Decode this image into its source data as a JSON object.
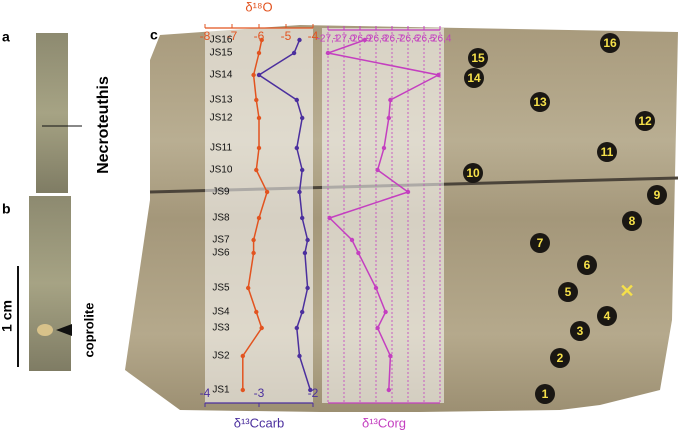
{
  "panels": [
    "a",
    "b",
    "c"
  ],
  "annotations": {
    "taxon": "Necroteuthis",
    "coprolite": "coprolite",
    "scale": "1 cm"
  },
  "burrow_labels": [
    "1",
    "2",
    "3",
    "4",
    "5",
    "6",
    "7",
    "8",
    "9",
    "10",
    "11",
    "12",
    "13",
    "14",
    "15",
    "16"
  ],
  "chart_data": [
    {
      "type": "line",
      "orientation": "vertical",
      "categories": [
        "JS16",
        "JS15",
        "JS14",
        "JS13",
        "JS12",
        "JS11",
        "JS10",
        "JS9",
        "JS8",
        "JS7",
        "JS6",
        "JS5",
        "JS4",
        "JS3",
        "JS2",
        "JS1"
      ],
      "xlim": [
        -8,
        -4
      ],
      "xticks": [
        -8,
        -7,
        -6,
        -5,
        -4
      ],
      "xlabel": "δ¹⁸O",
      "x2lim": [
        -4,
        -2
      ],
      "x2ticks": [
        -4,
        -3,
        -2
      ],
      "x2label": "δ¹³Ccarb",
      "series": [
        {
          "name": "δ¹⁸O",
          "color": "#e2531f",
          "axis": "x",
          "values": [
            -5.9,
            -6.0,
            -6.2,
            -6.1,
            -6.0,
            -6.0,
            -6.1,
            -5.7,
            -6.0,
            -6.2,
            -6.2,
            -6.4,
            -6.1,
            -5.9,
            -6.6,
            -6.6
          ]
        },
        {
          "name": "δ¹³Ccarb",
          "color": "#4b2f9e",
          "axis": "x2",
          "values": [
            -2.25,
            -2.35,
            -3.0,
            -2.3,
            -2.2,
            -2.3,
            -2.2,
            -2.25,
            -2.2,
            -2.1,
            -2.15,
            -2.1,
            -2.2,
            -2.3,
            -2.25,
            -2.05
          ]
        }
      ]
    },
    {
      "type": "line",
      "orientation": "vertical",
      "xlim": [
        -27.1,
        -26.4
      ],
      "xticks": [
        {
          "value": -27.1,
          "label": "-27,1"
        },
        {
          "value": -27.0,
          "label": "-27,0"
        },
        {
          "value": -26.9,
          "label": "-26,9"
        },
        {
          "value": -26.8,
          "label": "-26,8"
        },
        {
          "value": -26.7,
          "label": "-26,7"
        },
        {
          "value": -26.6,
          "label": "-26,6"
        },
        {
          "value": -26.5,
          "label": "-26,5"
        },
        {
          "value": -26.4,
          "label": "-26,4"
        }
      ],
      "xlabel": "δ¹³Corg",
      "grid": true,
      "series": [
        {
          "name": "δ¹³Corg",
          "color": "#c43fc0",
          "values": [
            -26.87,
            -27.1,
            -26.41,
            -26.71,
            -26.72,
            -26.75,
            -26.79,
            -26.6,
            -27.09,
            -26.95,
            -26.91,
            -26.8,
            -26.74,
            -26.79,
            -26.71,
            -26.72
          ]
        }
      ]
    }
  ]
}
